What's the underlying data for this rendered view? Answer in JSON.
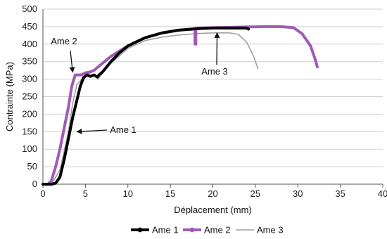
{
  "chart_data": {
    "type": "line",
    "xlabel": "Déplacement (mm)",
    "ylabel": "Contrainte (MPa)",
    "xlim": [
      0,
      40
    ],
    "ylim": [
      0,
      500
    ],
    "xticks": [
      0,
      5,
      10,
      15,
      20,
      25,
      30,
      35,
      40
    ],
    "yticks": [
      0,
      50,
      100,
      150,
      200,
      250,
      300,
      350,
      400,
      450,
      500
    ],
    "grid": "horizontal",
    "legend_position": "bottom",
    "series": [
      {
        "name": "Ame 1",
        "color": "#000000",
        "x": [
          0,
          1,
          1.5,
          2,
          2.5,
          3,
          3.5,
          4,
          4.4,
          4.8,
          5.2,
          5.6,
          6,
          6.4,
          6.6,
          7,
          8,
          9,
          10,
          12,
          14,
          16,
          18,
          20,
          22,
          24,
          24.2
        ],
        "y": [
          0,
          0,
          3,
          20,
          70,
          130,
          190,
          240,
          280,
          305,
          312,
          308,
          312,
          306,
          312,
          320,
          350,
          375,
          395,
          418,
          432,
          440,
          444,
          446,
          446,
          446,
          443
        ]
      },
      {
        "name": "Ame 2",
        "color": "#a05ab4",
        "x": [
          0,
          0.6,
          1,
          1.5,
          2,
          2.5,
          3,
          3.4,
          3.8,
          4.5,
          5,
          5.5,
          6,
          7,
          8,
          10,
          12,
          14,
          16,
          17.9,
          17.9,
          18,
          18,
          18.5,
          20,
          22,
          24,
          26,
          28,
          29.5,
          30.5,
          31.5,
          32,
          32.3
        ],
        "y": [
          0,
          0,
          10,
          50,
          100,
          160,
          220,
          280,
          312,
          312,
          318,
          320,
          325,
          345,
          365,
          395,
          418,
          432,
          440,
          443,
          400,
          400,
          445,
          446,
          447,
          448,
          449,
          450,
          450,
          447,
          430,
          395,
          360,
          335
        ]
      },
      {
        "name": "Ame 3",
        "color": "#a0a0a0",
        "x": [
          0,
          1,
          2,
          3,
          3.5,
          4,
          5,
          6,
          6.5,
          7,
          8,
          10,
          12,
          14,
          16,
          18,
          20,
          22,
          23,
          24,
          24.8,
          25.3
        ],
        "y": [
          0,
          0,
          40,
          150,
          230,
          285,
          310,
          312,
          300,
          318,
          345,
          388,
          410,
          420,
          426,
          430,
          432,
          432,
          428,
          405,
          365,
          330
        ]
      }
    ],
    "annotations": [
      {
        "text": "Ame 2",
        "x": 3.5,
        "y": 320
      },
      {
        "text": "Ame 1",
        "x": 4.0,
        "y": 150
      },
      {
        "text": "Ame 3",
        "x": 20.5,
        "y": 432
      }
    ]
  }
}
